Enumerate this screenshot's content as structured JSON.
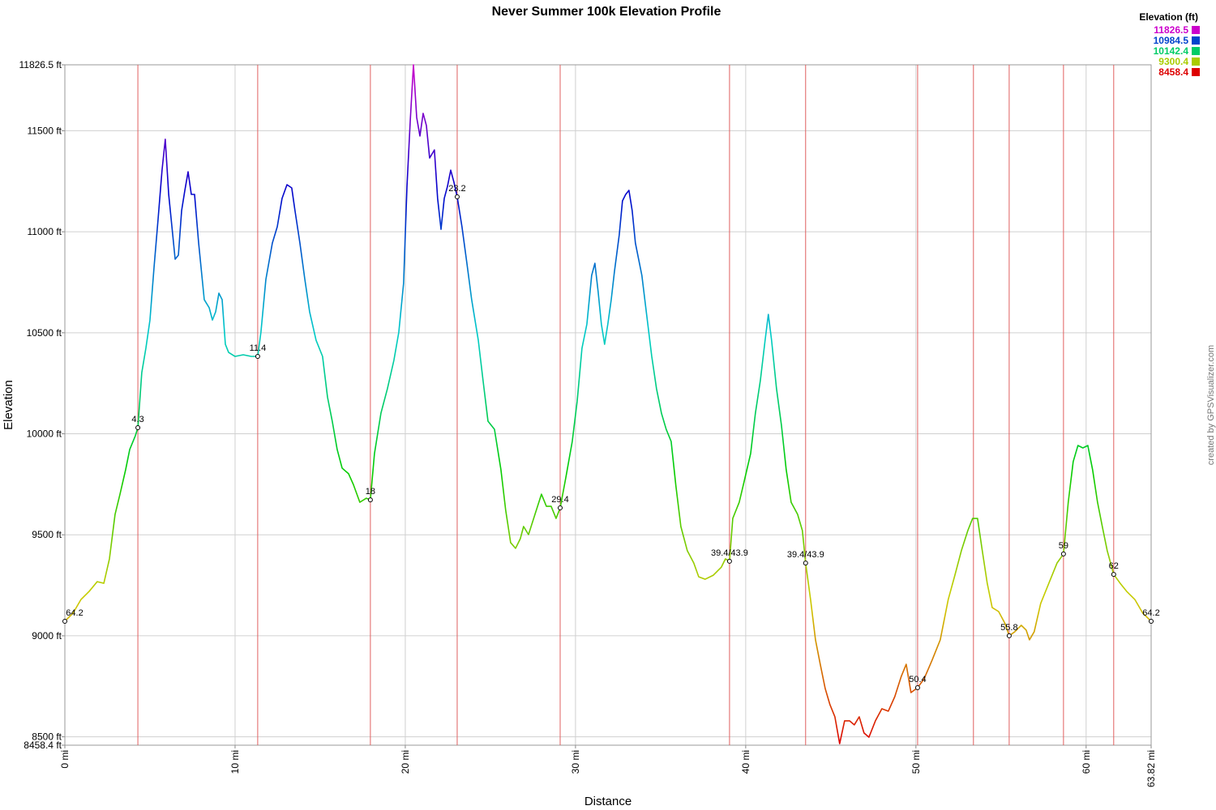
{
  "chart_data": {
    "type": "line",
    "title": "Never Summer 100k Elevation Profile",
    "xlabel": "Distance",
    "ylabel": "Elevation",
    "credit": "created by GPSVisualizer.com",
    "legend_title": "Elevation (ft)",
    "colorscale": [
      {
        "value": 11826.5,
        "color": "#cc00cc"
      },
      {
        "value": 10984.5,
        "color": "#0044cc"
      },
      {
        "value": 10142.4,
        "color": "#00cc66"
      },
      {
        "value": 9300.4,
        "color": "#aacc00"
      },
      {
        "value": 8458.4,
        "color": "#dd0000"
      }
    ],
    "split_color": "#e06060",
    "xlim": [
      0,
      63.82
    ],
    "ylim": [
      8458.4,
      11826.5
    ],
    "xticks": [
      {
        "value": 0,
        "label": "0 mi"
      },
      {
        "value": 10,
        "label": "10 mi"
      },
      {
        "value": 20,
        "label": "20 mi"
      },
      {
        "value": 30,
        "label": "30 mi"
      },
      {
        "value": 40,
        "label": "40 mi"
      },
      {
        "value": 50,
        "label": "50 mi"
      },
      {
        "value": 60,
        "label": "60 mi"
      },
      {
        "value": 63.82,
        "label": "63.82 mi"
      }
    ],
    "yticks": [
      {
        "value": 8458.4,
        "label": "8458.4 ft"
      },
      {
        "value": 8500,
        "label": "8500 ft"
      },
      {
        "value": 9000,
        "label": "9000 ft"
      },
      {
        "value": 9500,
        "label": "9500 ft"
      },
      {
        "value": 10000,
        "label": "10000 ft"
      },
      {
        "value": 10500,
        "label": "10500 ft"
      },
      {
        "value": 11000,
        "label": "11000 ft"
      },
      {
        "value": 11500,
        "label": "11500 ft"
      },
      {
        "value": 11826.5,
        "label": "11826.5 ft"
      }
    ],
    "grid": true,
    "legend": "top-right",
    "x": [
      0,
      0.48,
      0.95,
      1.43,
      1.9,
      2.29,
      2.62,
      2.95,
      3.24,
      3.57,
      3.81,
      4.14,
      4.29,
      4.52,
      4.76,
      5.0,
      5.24,
      5.48,
      5.71,
      5.9,
      6.1,
      6.29,
      6.48,
      6.67,
      6.86,
      7.05,
      7.24,
      7.43,
      7.62,
      7.86,
      8.19,
      8.48,
      8.67,
      8.86,
      9.05,
      9.24,
      9.43,
      9.62,
      10.0,
      10.48,
      10.95,
      11.33,
      11.52,
      11.81,
      12.19,
      12.48,
      12.76,
      13.05,
      13.33,
      13.52,
      13.81,
      14.1,
      14.38,
      14.76,
      15.14,
      15.43,
      15.71,
      16.0,
      16.29,
      16.67,
      16.95,
      17.33,
      17.71,
      17.95,
      18.19,
      18.57,
      18.95,
      19.33,
      19.62,
      19.9,
      20.1,
      20.29,
      20.48,
      20.67,
      20.86,
      21.05,
      21.24,
      21.43,
      21.71,
      21.9,
      22.1,
      22.29,
      22.48,
      22.67,
      22.86,
      23.05,
      23.33,
      23.62,
      23.9,
      24.29,
      24.57,
      24.86,
      25.24,
      25.62,
      25.9,
      26.19,
      26.48,
      26.76,
      26.95,
      27.24,
      27.62,
      28.0,
      28.29,
      28.57,
      28.86,
      29.1,
      29.43,
      29.81,
      30.1,
      30.38,
      30.67,
      30.95,
      31.14,
      31.33,
      31.52,
      31.71,
      31.9,
      32.1,
      32.29,
      32.57,
      32.76,
      32.95,
      33.14,
      33.33,
      33.52,
      33.71,
      33.9,
      34.19,
      34.48,
      34.76,
      35.05,
      35.33,
      35.62,
      35.9,
      36.19,
      36.57,
      36.95,
      37.24,
      37.62,
      38.1,
      38.57,
      38.81,
      39.05,
      39.24,
      39.62,
      39.9,
      40.29,
      40.57,
      40.86,
      41.14,
      41.33,
      41.52,
      41.81,
      42.1,
      42.38,
      42.67,
      43.05,
      43.33,
      43.52,
      43.81,
      44.1,
      44.38,
      44.67,
      44.95,
      45.24,
      45.52,
      45.81,
      46.1,
      46.38,
      46.67,
      46.95,
      47.24,
      47.62,
      48.0,
      48.38,
      48.76,
      49.14,
      49.43,
      49.71,
      50.1,
      50.48,
      50.95,
      51.43,
      51.9,
      52.29,
      52.67,
      53.05,
      53.33,
      53.62,
      53.9,
      54.19,
      54.48,
      54.86,
      55.24,
      55.48,
      55.81,
      56.19,
      56.48,
      56.67,
      56.95,
      57.33,
      57.81,
      58.29,
      58.67,
      58.95,
      59.24,
      59.52,
      59.81,
      60.1,
      60.38,
      60.67,
      60.95,
      61.24,
      61.62,
      62.0,
      62.38,
      62.86,
      63.33,
      63.82
    ],
    "values": [
      9072,
      9112,
      9180,
      9220,
      9268,
      9260,
      9381,
      9601,
      9701,
      9822,
      9922,
      9990,
      10030,
      10303,
      10423,
      10563,
      10824,
      11065,
      11305,
      11458,
      11185,
      11025,
      10864,
      10884,
      11105,
      11205,
      11297,
      11185,
      11185,
      10944,
      10664,
      10624,
      10563,
      10604,
      10696,
      10664,
      10443,
      10403,
      10383,
      10391,
      10383,
      10383,
      10503,
      10764,
      10944,
      11025,
      11165,
      11233,
      11217,
      11105,
      10944,
      10764,
      10604,
      10463,
      10383,
      10182,
      10062,
      9922,
      9830,
      9802,
      9749,
      9661,
      9681,
      9673,
      9902,
      10102,
      10223,
      10363,
      10503,
      10744,
      11225,
      11546,
      11826.5,
      11566,
      11474,
      11586,
      11526,
      11365,
      11405,
      11165,
      11012,
      11165,
      11225,
      11305,
      11245,
      11173,
      11025,
      10844,
      10664,
      10463,
      10263,
      10062,
      10022,
      9822,
      9621,
      9461,
      9433,
      9481,
      9541,
      9501,
      9601,
      9701,
      9641,
      9641,
      9581,
      9633,
      9782,
      9962,
      10162,
      10423,
      10543,
      10784,
      10844,
      10704,
      10543,
      10443,
      10543,
      10664,
      10804,
      10984,
      11153,
      11185,
      11205,
      11105,
      10944,
      10864,
      10784,
      10583,
      10383,
      10223,
      10102,
      10022,
      9962,
      9741,
      9541,
      9421,
      9360,
      9292,
      9280,
      9300,
      9340,
      9381,
      9369,
      9581,
      9661,
      9761,
      9902,
      10102,
      10263,
      10463,
      10591,
      10463,
      10223,
      10042,
      9822,
      9661,
      9601,
      9521,
      9360,
      9180,
      8980,
      8859,
      8739,
      8659,
      8599,
      8466,
      8579,
      8579,
      8559,
      8599,
      8519,
      8498,
      8579,
      8639,
      8627,
      8699,
      8799,
      8859,
      8719,
      8743,
      8787,
      8879,
      8980,
      9180,
      9300,
      9421,
      9521,
      9581,
      9581,
      9421,
      9260,
      9140,
      9120,
      9060,
      9000,
      9020,
      9052,
      9028,
      8980,
      9020,
      9160,
      9260,
      9360,
      9405,
      9661,
      9862,
      9942,
      9930,
      9942,
      9822,
      9661,
      9541,
      9421,
      9304,
      9260,
      9220,
      9180,
      9112,
      9072
    ],
    "splits": [
      4.29,
      11.33,
      17.95,
      23.05,
      29.1,
      39.05,
      43.52,
      50.1,
      53.38,
      55.48,
      58.67,
      61.62
    ],
    "waypoints": [
      {
        "label": "64.2",
        "x": 0,
        "y": 9072
      },
      {
        "label": "4.3",
        "x": 4.29,
        "y": 10030
      },
      {
        "label": "11.4",
        "x": 11.33,
        "y": 10383
      },
      {
        "label": "18",
        "x": 17.95,
        "y": 9673
      },
      {
        "label": "23.2",
        "x": 23.05,
        "y": 11173
      },
      {
        "label": "29.4",
        "x": 29.1,
        "y": 9633
      },
      {
        "label": "39.4/43.9",
        "x": 39.05,
        "y": 9369
      },
      {
        "label": "39.4/43.9",
        "x": 43.52,
        "y": 9360
      },
      {
        "label": "50.4",
        "x": 50.1,
        "y": 8743
      },
      {
        "label": "55.8",
        "x": 55.48,
        "y": 9000
      },
      {
        "label": "59",
        "x": 58.67,
        "y": 9405
      },
      {
        "label": "62",
        "x": 61.62,
        "y": 9304
      },
      {
        "label": "64.2",
        "x": 63.82,
        "y": 9072
      }
    ]
  }
}
